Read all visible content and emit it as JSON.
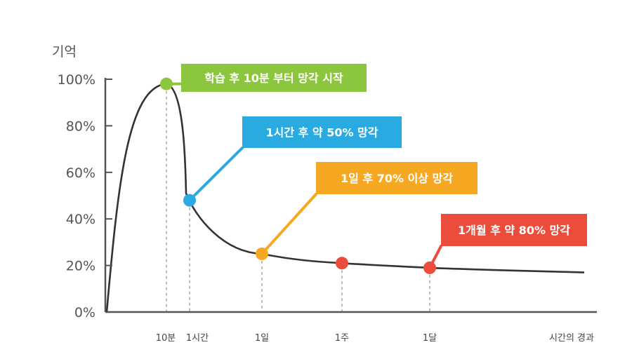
{
  "chart_data": {
    "type": "line",
    "ylabel": "기억",
    "xlabel": "시간의 경과",
    "ylim": [
      0,
      100
    ],
    "yticks": [
      "0%",
      "20%",
      "40%",
      "60%",
      "80%",
      "100%"
    ],
    "ytick_values": [
      0,
      20,
      40,
      60,
      80,
      100
    ],
    "categories": [
      "10분",
      "1시간",
      "1일",
      "1주",
      "1달"
    ],
    "grid": false,
    "series": [
      {
        "values": [
          98,
          48,
          25,
          21,
          19
        ]
      }
    ],
    "points": [
      {
        "x": "10분",
        "y": 98,
        "color": "#8cc63f"
      },
      {
        "x": "1시간",
        "y": 48,
        "color": "#29abe2"
      },
      {
        "x": "1일",
        "y": 25,
        "color": "#f7a823"
      },
      {
        "x": "1주",
        "y": 21,
        "color": "#ec4c3c"
      },
      {
        "x": "1달",
        "y": 19,
        "color": "#ec4c3c"
      }
    ],
    "annotations": [
      {
        "text": "학습 후 10분 부터 망각 시작",
        "target": "10분",
        "color": "#8cc63f"
      },
      {
        "text": "1시간 후 약 50% 망각",
        "target": "1시간",
        "color": "#29abe2"
      },
      {
        "text": "1일 후 70% 이상 망각",
        "target": "1일",
        "color": "#f7a823"
      },
      {
        "text": "1개월 후 약 80% 망각",
        "target": "1달",
        "color": "#ec4c3c"
      }
    ],
    "colors": {
      "curve": "#333333",
      "axis": "#555555",
      "guide": "#999999"
    }
  }
}
